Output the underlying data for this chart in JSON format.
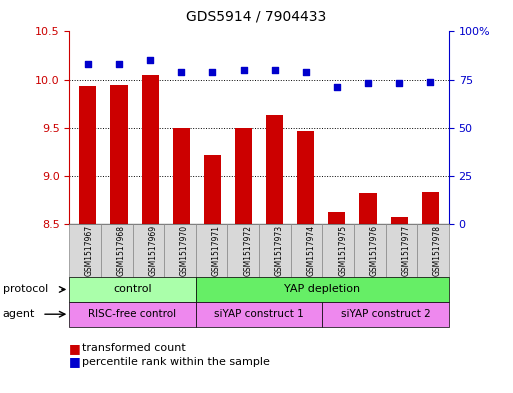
{
  "title": "GDS5914 / 7904433",
  "samples": [
    "GSM1517967",
    "GSM1517968",
    "GSM1517969",
    "GSM1517970",
    "GSM1517971",
    "GSM1517972",
    "GSM1517973",
    "GSM1517974",
    "GSM1517975",
    "GSM1517976",
    "GSM1517977",
    "GSM1517978"
  ],
  "transformed_count": [
    9.93,
    9.94,
    10.05,
    9.5,
    9.22,
    9.5,
    9.63,
    9.47,
    8.62,
    8.82,
    8.57,
    8.83
  ],
  "percentile_rank": [
    83,
    83,
    85,
    79,
    79,
    80,
    80,
    79,
    71,
    73,
    73,
    74
  ],
  "ylim_left": [
    8.5,
    10.5
  ],
  "ylim_right": [
    0,
    100
  ],
  "yticks_left": [
    8.5,
    9.0,
    9.5,
    10.0,
    10.5
  ],
  "yticks_right": [
    0,
    25,
    50,
    75,
    100
  ],
  "bar_color": "#cc0000",
  "scatter_color": "#0000cc",
  "protocol_control_color": "#aaffaa",
  "protocol_yap_color": "#66ee66",
  "agent_risc_color": "#ee88ee",
  "agent_siyap_color": "#ee88ee",
  "protocol_control_label": "control",
  "protocol_yap_label": "YAP depletion",
  "agent_risc_label": "RISC-free control",
  "agent_siyap1_label": "siYAP construct 1",
  "agent_siyap2_label": "siYAP construct 2",
  "legend_items": [
    "transformed count",
    "percentile rank within the sample"
  ],
  "bar_bottom": 8.5,
  "n_samples": 12
}
